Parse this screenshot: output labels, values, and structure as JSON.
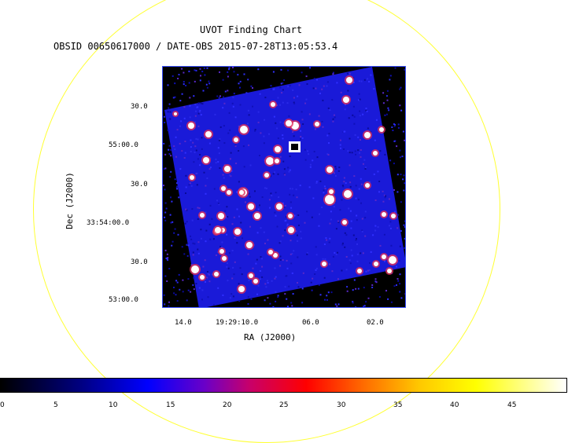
{
  "title": "UVOT Finding Chart",
  "subtitle": "OBSID 00650617000 / DATE-OBS 2015-07-28T13:05:53.4",
  "xaxis": {
    "label": "RA (J2000)",
    "ticks": [
      "14.0",
      "19:29:10.0",
      "06.0",
      "02.0"
    ]
  },
  "yaxis": {
    "label": "Dec (J2000)",
    "ticks": [
      "30.0",
      "55:00.0",
      "30.0",
      "33:54:00.0",
      "30.0",
      "53:00.0"
    ]
  },
  "colorbar": {
    "min": 0,
    "max": 50,
    "ticks": [
      "0",
      "5",
      "10",
      "15",
      "20",
      "25",
      "30",
      "35",
      "40",
      "45"
    ]
  },
  "colors": {
    "circle": "#ffff33",
    "frame": "#3a4fff",
    "background": "#1a1ad8"
  }
}
